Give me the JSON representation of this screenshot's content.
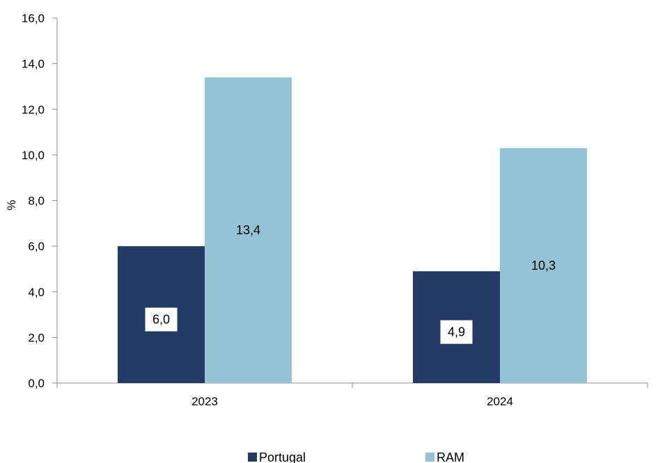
{
  "chart_data": {
    "type": "bar",
    "categories": [
      "2023",
      "2024"
    ],
    "series": [
      {
        "name": "Portugal",
        "values": [
          6.0,
          4.9
        ],
        "labels": [
          "6,0",
          "4,9"
        ],
        "color": "#233a65"
      },
      {
        "name": "RAM",
        "values": [
          13.4,
          10.3
        ],
        "labels": [
          "13,4",
          "10,3"
        ],
        "color": "#93c3d5"
      }
    ],
    "ylabel": "%",
    "ylim": [
      0,
      16
    ],
    "yticks": [
      0,
      2,
      4,
      6,
      8,
      10,
      12,
      14,
      16
    ],
    "ytick_labels": [
      "0,0",
      "2,0",
      "4,0",
      "6,0",
      "8,0",
      "10,0",
      "12,0",
      "14,0",
      "16,0"
    ],
    "grid": false,
    "legend_position": "bottom"
  }
}
